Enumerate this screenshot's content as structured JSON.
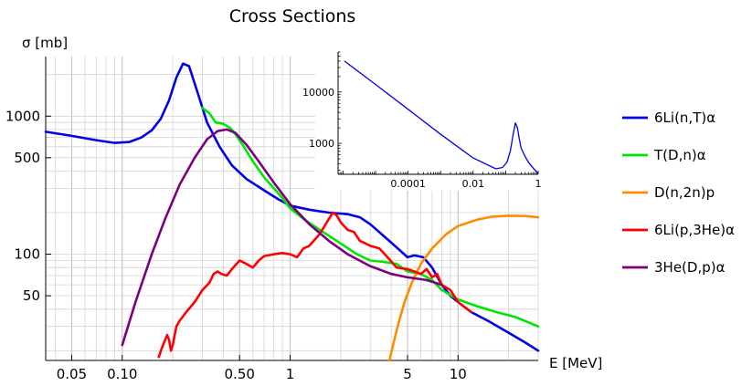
{
  "chart_data": [
    {
      "type": "line",
      "title": "Cross Sections",
      "xlabel": "E [MeV]",
      "ylabel": "σ [mb]",
      "xscale": "log",
      "yscale": "log",
      "xlim": [
        0.035,
        30
      ],
      "ylim": [
        17,
        2700
      ],
      "grid": true,
      "legend_position": "right",
      "x_ticks": [
        {
          "v": 0.05,
          "label": "0.05"
        },
        {
          "v": 0.1,
          "label": "0.10"
        },
        {
          "v": 0.5,
          "label": "0.50"
        },
        {
          "v": 1,
          "label": "1"
        },
        {
          "v": 5,
          "label": "5"
        },
        {
          "v": 10,
          "label": "10"
        }
      ],
      "y_ticks": [
        {
          "v": 50,
          "label": "50"
        },
        {
          "v": 100,
          "label": "100"
        },
        {
          "v": 500,
          "label": "500"
        },
        {
          "v": 1000,
          "label": "1000"
        }
      ],
      "series": [
        {
          "name": "6Li(n,T)α",
          "color": "#0000e6",
          "x": [
            0.035,
            0.05,
            0.07,
            0.09,
            0.11,
            0.13,
            0.15,
            0.17,
            0.19,
            0.21,
            0.23,
            0.25,
            0.28,
            0.32,
            0.38,
            0.45,
            0.55,
            0.7,
            0.85,
            1.0,
            1.3,
            1.7,
            2.2,
            2.6,
            3.0,
            3.5,
            4.2,
            5.0,
            5.5,
            6.2,
            7.0,
            8.0,
            9.0,
            10,
            12,
            15,
            20,
            25,
            30
          ],
          "y": [
            770,
            720,
            670,
            640,
            650,
            700,
            790,
            960,
            1300,
            1900,
            2400,
            2300,
            1500,
            900,
            600,
            440,
            350,
            290,
            250,
            225,
            210,
            200,
            195,
            185,
            165,
            140,
            115,
            95,
            98,
            95,
            80,
            60,
            50,
            45,
            38,
            33,
            27,
            23,
            20
          ]
        },
        {
          "name": "T(D,n)α",
          "color": "#00e600",
          "x": [
            0.3,
            0.33,
            0.36,
            0.4,
            0.44,
            0.48,
            0.53,
            0.6,
            0.7,
            0.8,
            0.9,
            1.0,
            1.2,
            1.5,
            1.8,
            2.1,
            2.5,
            3.0,
            3.6,
            4.3,
            5.0,
            6.0,
            7.0,
            8.0,
            10,
            13,
            17,
            22,
            30
          ],
          "y": [
            1150,
            1050,
            900,
            880,
            820,
            720,
            600,
            470,
            360,
            300,
            255,
            215,
            180,
            150,
            130,
            115,
            100,
            90,
            88,
            85,
            75,
            72,
            65,
            55,
            47,
            42,
            38,
            35,
            30
          ]
        },
        {
          "name": "D(n,2n)p",
          "color": "#ff8c00",
          "x": [
            3.9,
            4.1,
            4.4,
            4.8,
            5.3,
            6.0,
            7.0,
            8.5,
            10,
            13,
            16,
            20,
            25,
            30
          ],
          "y": [
            17,
            22,
            31,
            45,
            62,
            85,
            110,
            140,
            160,
            178,
            187,
            190,
            189,
            185
          ]
        },
        {
          "name": "6Li(p,3He)α",
          "color": "#ff0000",
          "x": [
            0.165,
            0.17,
            0.175,
            0.185,
            0.19,
            0.195,
            0.2,
            0.21,
            0.22,
            0.24,
            0.27,
            0.3,
            0.33,
            0.35,
            0.37,
            0.39,
            0.42,
            0.45,
            0.5,
            0.55,
            0.6,
            0.65,
            0.7,
            0.8,
            0.9,
            1.0,
            1.1,
            1.2,
            1.3,
            1.5,
            1.7,
            1.8,
            1.9,
            2.0,
            2.2,
            2.4,
            2.6,
            2.8,
            3.0,
            3.4,
            3.8,
            4.3,
            5.0,
            5.5,
            6.0,
            6.5,
            7.0,
            7.5,
            8.0,
            9.0,
            10,
            12
          ],
          "y": [
            18,
            20,
            22,
            26,
            24,
            20,
            22,
            30,
            33,
            38,
            45,
            55,
            62,
            72,
            75,
            72,
            70,
            78,
            90,
            85,
            80,
            90,
            97,
            100,
            102,
            100,
            95,
            110,
            115,
            140,
            180,
            200,
            190,
            170,
            150,
            145,
            125,
            120,
            115,
            110,
            95,
            80,
            78,
            75,
            72,
            78,
            68,
            72,
            60,
            55,
            45,
            38
          ]
        },
        {
          "name": "3He(D,p)α",
          "color": "#7a0080",
          "x": [
            0.1,
            0.12,
            0.15,
            0.18,
            0.22,
            0.27,
            0.32,
            0.37,
            0.42,
            0.47,
            0.55,
            0.65,
            0.8,
            1.0,
            1.3,
            1.7,
            2.2,
            3.0,
            4.0,
            5.0,
            6.5,
            8.0
          ],
          "y": [
            22,
            45,
            100,
            180,
            320,
            500,
            680,
            780,
            800,
            760,
            620,
            470,
            330,
            230,
            165,
            125,
            100,
            82,
            72,
            68,
            65,
            60
          ]
        }
      ]
    },
    {
      "type": "line",
      "title": "",
      "xlabel": "",
      "ylabel": "",
      "xscale": "log",
      "yscale": "log",
      "xlim": [
        7e-07,
        1.0
      ],
      "ylim": [
        250,
        60000
      ],
      "grid": false,
      "x_ticks": [
        {
          "v": 0.0001,
          "label": "0.0001"
        },
        {
          "v": 0.01,
          "label": "0.01"
        },
        {
          "v": 1,
          "label": "1"
        }
      ],
      "y_ticks": [
        {
          "v": 1000,
          "label": "1000"
        },
        {
          "v": 10000,
          "label": "10000"
        }
      ],
      "series": [
        {
          "name": "",
          "color": "#0000e6",
          "x": [
            1.1e-06,
            1e-05,
            0.0001,
            0.001,
            0.01,
            0.05,
            0.08,
            0.11,
            0.14,
            0.17,
            0.2,
            0.23,
            0.26,
            0.3,
            0.4,
            0.5,
            0.7,
            1.0
          ],
          "y": [
            40000,
            14000,
            4600,
            1500,
            520,
            320,
            340,
            430,
            720,
            1500,
            2500,
            2000,
            1250,
            800,
            550,
            430,
            330,
            260
          ]
        }
      ]
    }
  ]
}
